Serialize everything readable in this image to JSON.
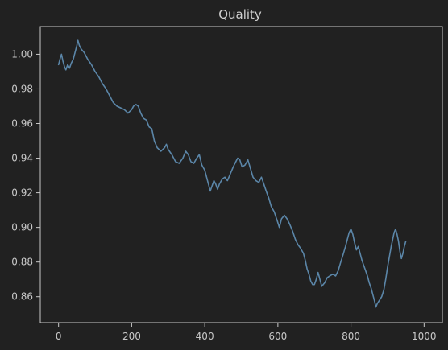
{
  "chart_data": {
    "type": "line",
    "title": "Quality",
    "xlabel": "",
    "ylabel": "",
    "xlim": [
      -50,
      1050
    ],
    "ylim": [
      0.845,
      1.016
    ],
    "grid": false,
    "legend": "none",
    "background_color": "#212121",
    "axis_color": "#c8c8c8",
    "series": [
      {
        "color": "#5b86a8",
        "points": [
          [
            0,
            0.994
          ],
          [
            5,
            0.998
          ],
          [
            8,
            1.0
          ],
          [
            12,
            0.996
          ],
          [
            16,
            0.993
          ],
          [
            20,
            0.991
          ],
          [
            25,
            0.994
          ],
          [
            30,
            0.992
          ],
          [
            35,
            0.995
          ],
          [
            40,
            0.997
          ],
          [
            45,
            1.001
          ],
          [
            50,
            1.005
          ],
          [
            53,
            1.008
          ],
          [
            57,
            1.005
          ],
          [
            62,
            1.003
          ],
          [
            70,
            1.001
          ],
          [
            80,
            0.997
          ],
          [
            90,
            0.994
          ],
          [
            100,
            0.99
          ],
          [
            110,
            0.987
          ],
          [
            120,
            0.983
          ],
          [
            130,
            0.98
          ],
          [
            140,
            0.976
          ],
          [
            150,
            0.972
          ],
          [
            160,
            0.97
          ],
          [
            170,
            0.969
          ],
          [
            180,
            0.968
          ],
          [
            190,
            0.966
          ],
          [
            200,
            0.968
          ],
          [
            205,
            0.97
          ],
          [
            212,
            0.971
          ],
          [
            218,
            0.97
          ],
          [
            225,
            0.966
          ],
          [
            232,
            0.963
          ],
          [
            240,
            0.962
          ],
          [
            248,
            0.958
          ],
          [
            255,
            0.957
          ],
          [
            262,
            0.95
          ],
          [
            270,
            0.946
          ],
          [
            280,
            0.944
          ],
          [
            290,
            0.946
          ],
          [
            295,
            0.948
          ],
          [
            300,
            0.945
          ],
          [
            310,
            0.942
          ],
          [
            320,
            0.938
          ],
          [
            330,
            0.937
          ],
          [
            340,
            0.94
          ],
          [
            348,
            0.944
          ],
          [
            355,
            0.942
          ],
          [
            362,
            0.938
          ],
          [
            370,
            0.937
          ],
          [
            378,
            0.94
          ],
          [
            385,
            0.942
          ],
          [
            392,
            0.936
          ],
          [
            400,
            0.933
          ],
          [
            405,
            0.929
          ],
          [
            410,
            0.925
          ],
          [
            415,
            0.921
          ],
          [
            420,
            0.924
          ],
          [
            425,
            0.927
          ],
          [
            430,
            0.925
          ],
          [
            435,
            0.922
          ],
          [
            440,
            0.925
          ],
          [
            448,
            0.928
          ],
          [
            455,
            0.929
          ],
          [
            462,
            0.927
          ],
          [
            470,
            0.931
          ],
          [
            478,
            0.935
          ],
          [
            485,
            0.938
          ],
          [
            490,
            0.94
          ],
          [
            496,
            0.939
          ],
          [
            502,
            0.935
          ],
          [
            510,
            0.936
          ],
          [
            518,
            0.939
          ],
          [
            525,
            0.934
          ],
          [
            532,
            0.929
          ],
          [
            540,
            0.927
          ],
          [
            548,
            0.926
          ],
          [
            555,
            0.929
          ],
          [
            560,
            0.926
          ],
          [
            568,
            0.921
          ],
          [
            575,
            0.917
          ],
          [
            582,
            0.912
          ],
          [
            590,
            0.909
          ],
          [
            598,
            0.904
          ],
          [
            604,
            0.9
          ],
          [
            610,
            0.905
          ],
          [
            618,
            0.907
          ],
          [
            625,
            0.905
          ],
          [
            632,
            0.902
          ],
          [
            640,
            0.898
          ],
          [
            648,
            0.893
          ],
          [
            655,
            0.89
          ],
          [
            662,
            0.888
          ],
          [
            670,
            0.885
          ],
          [
            675,
            0.881
          ],
          [
            680,
            0.876
          ],
          [
            685,
            0.873
          ],
          [
            690,
            0.869
          ],
          [
            695,
            0.867
          ],
          [
            700,
            0.867
          ],
          [
            705,
            0.87
          ],
          [
            710,
            0.874
          ],
          [
            715,
            0.87
          ],
          [
            720,
            0.866
          ],
          [
            728,
            0.868
          ],
          [
            735,
            0.871
          ],
          [
            742,
            0.872
          ],
          [
            750,
            0.873
          ],
          [
            758,
            0.872
          ],
          [
            765,
            0.875
          ],
          [
            772,
            0.88
          ],
          [
            778,
            0.884
          ],
          [
            785,
            0.889
          ],
          [
            790,
            0.893
          ],
          [
            795,
            0.897
          ],
          [
            800,
            0.899
          ],
          [
            805,
            0.896
          ],
          [
            810,
            0.891
          ],
          [
            815,
            0.887
          ],
          [
            820,
            0.889
          ],
          [
            825,
            0.885
          ],
          [
            830,
            0.881
          ],
          [
            835,
            0.878
          ],
          [
            840,
            0.875
          ],
          [
            845,
            0.872
          ],
          [
            850,
            0.868
          ],
          [
            855,
            0.865
          ],
          [
            860,
            0.861
          ],
          [
            865,
            0.857
          ],
          [
            868,
            0.854
          ],
          [
            872,
            0.856
          ],
          [
            878,
            0.858
          ],
          [
            884,
            0.86
          ],
          [
            890,
            0.864
          ],
          [
            895,
            0.87
          ],
          [
            900,
            0.877
          ],
          [
            905,
            0.883
          ],
          [
            910,
            0.889
          ],
          [
            915,
            0.894
          ],
          [
            918,
            0.897
          ],
          [
            922,
            0.899
          ],
          [
            926,
            0.896
          ],
          [
            930,
            0.892
          ],
          [
            934,
            0.886
          ],
          [
            938,
            0.882
          ],
          [
            942,
            0.885
          ],
          [
            946,
            0.889
          ],
          [
            950,
            0.892
          ]
        ]
      }
    ],
    "x_ticks": [
      {
        "value": 0,
        "label": "0"
      },
      {
        "value": 200,
        "label": "200"
      },
      {
        "value": 400,
        "label": "400"
      },
      {
        "value": 600,
        "label": "600"
      },
      {
        "value": 800,
        "label": "800"
      },
      {
        "value": 1000,
        "label": "1000"
      }
    ],
    "y_ticks": [
      {
        "value": 0.86,
        "label": "0.86"
      },
      {
        "value": 0.88,
        "label": "0.88"
      },
      {
        "value": 0.9,
        "label": "0.90"
      },
      {
        "value": 0.92,
        "label": "0.92"
      },
      {
        "value": 0.94,
        "label": "0.94"
      },
      {
        "value": 0.96,
        "label": "0.96"
      },
      {
        "value": 0.98,
        "label": "0.98"
      },
      {
        "value": 1.0,
        "label": "1.00"
      }
    ]
  }
}
